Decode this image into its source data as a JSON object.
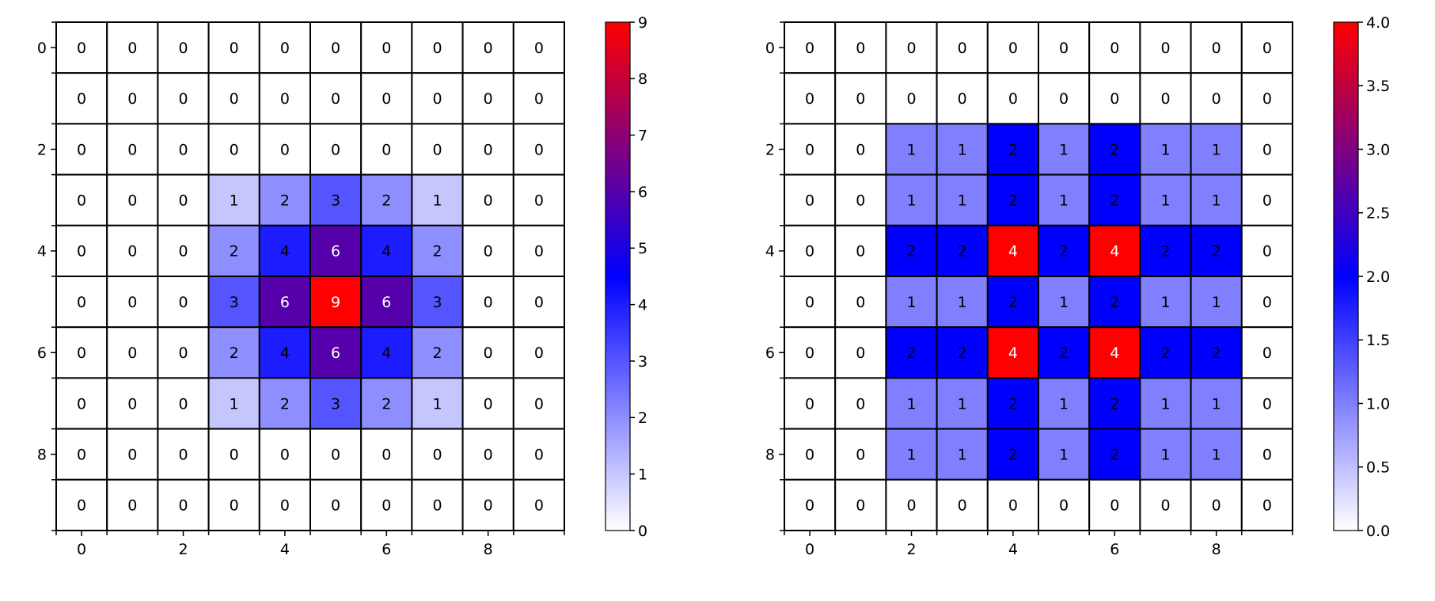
{
  "chart_data": [
    {
      "type": "heatmap",
      "title": "",
      "xlabel": "",
      "ylabel": "",
      "x_ticks": [
        0,
        2,
        4,
        6,
        8
      ],
      "y_ticks": [
        0,
        2,
        4,
        6,
        8
      ],
      "x_tick_labels": [
        "0",
        "2",
        "4",
        "6",
        "8"
      ],
      "y_tick_labels": [
        "0",
        "2",
        "4",
        "6",
        "8"
      ],
      "grid": true,
      "colorbar": {
        "min": 0,
        "max": 9,
        "ticks": [
          0,
          1,
          2,
          3,
          4,
          5,
          6,
          7,
          8,
          9
        ],
        "tick_labels": [
          "0",
          "1",
          "2",
          "3",
          "4",
          "5",
          "6",
          "7",
          "8",
          "9"
        ],
        "colors": [
          "#ffffff",
          "#0000ff",
          "#ff0000"
        ]
      },
      "values": [
        [
          0,
          0,
          0,
          0,
          0,
          0,
          0,
          0,
          0,
          0
        ],
        [
          0,
          0,
          0,
          0,
          0,
          0,
          0,
          0,
          0,
          0
        ],
        [
          0,
          0,
          0,
          0,
          0,
          0,
          0,
          0,
          0,
          0
        ],
        [
          0,
          0,
          0,
          1,
          2,
          3,
          2,
          1,
          0,
          0
        ],
        [
          0,
          0,
          0,
          2,
          4,
          6,
          4,
          2,
          0,
          0
        ],
        [
          0,
          0,
          0,
          3,
          6,
          9,
          6,
          3,
          0,
          0
        ],
        [
          0,
          0,
          0,
          2,
          4,
          6,
          4,
          2,
          0,
          0
        ],
        [
          0,
          0,
          0,
          1,
          2,
          3,
          2,
          1,
          0,
          0
        ],
        [
          0,
          0,
          0,
          0,
          0,
          0,
          0,
          0,
          0,
          0
        ],
        [
          0,
          0,
          0,
          0,
          0,
          0,
          0,
          0,
          0,
          0
        ]
      ]
    },
    {
      "type": "heatmap",
      "title": "",
      "xlabel": "",
      "ylabel": "",
      "x_ticks": [
        0,
        2,
        4,
        6,
        8
      ],
      "y_ticks": [
        0,
        2,
        4,
        6,
        8
      ],
      "x_tick_labels": [
        "0",
        "2",
        "4",
        "6",
        "8"
      ],
      "y_tick_labels": [
        "0",
        "2",
        "4",
        "6",
        "8"
      ],
      "grid": true,
      "colorbar": {
        "min": 0,
        "max": 4,
        "ticks": [
          0,
          0.5,
          1,
          1.5,
          2,
          2.5,
          3,
          3.5,
          4
        ],
        "tick_labels": [
          "0.0",
          "0.5",
          "1.0",
          "1.5",
          "2.0",
          "2.5",
          "3.0",
          "3.5",
          "4.0"
        ],
        "colors": [
          "#ffffff",
          "#0000ff",
          "#ff0000"
        ]
      },
      "values": [
        [
          0,
          0,
          0,
          0,
          0,
          0,
          0,
          0,
          0,
          0
        ],
        [
          0,
          0,
          0,
          0,
          0,
          0,
          0,
          0,
          0,
          0
        ],
        [
          0,
          0,
          1,
          1,
          2,
          1,
          2,
          1,
          1,
          0
        ],
        [
          0,
          0,
          1,
          1,
          2,
          1,
          2,
          1,
          1,
          0
        ],
        [
          0,
          0,
          2,
          2,
          4,
          2,
          4,
          2,
          2,
          0
        ],
        [
          0,
          0,
          1,
          1,
          2,
          1,
          2,
          1,
          1,
          0
        ],
        [
          0,
          0,
          2,
          2,
          4,
          2,
          4,
          2,
          2,
          0
        ],
        [
          0,
          0,
          1,
          1,
          2,
          1,
          2,
          1,
          1,
          0
        ],
        [
          0,
          0,
          1,
          1,
          2,
          1,
          2,
          1,
          1,
          0
        ],
        [
          0,
          0,
          0,
          0,
          0,
          0,
          0,
          0,
          0,
          0
        ]
      ]
    }
  ]
}
